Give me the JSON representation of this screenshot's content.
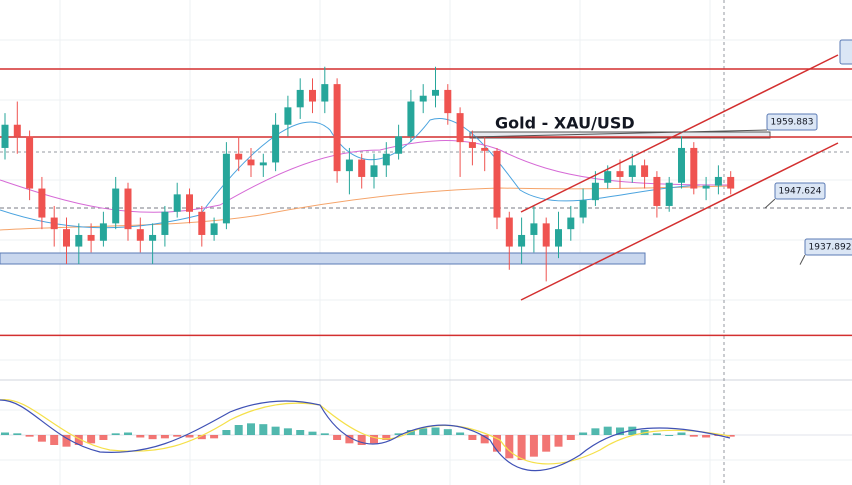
{
  "chart_data": {
    "type": "candlestick",
    "title": "Gold - XAU/USD",
    "up_color": "#26a69a",
    "down_color": "#ef5350",
    "ylim": [
      1918,
      1983.5
    ],
    "levels": [
      1971.6,
      1959.883,
      1925.7
    ],
    "price_labels": [
      1959.883,
      1947.624,
      1937.892
    ],
    "candles": [
      [
        1958,
        1964,
        1956,
        1962
      ],
      [
        1962,
        1966,
        1957,
        1960
      ],
      [
        1960,
        1961,
        1949,
        1951
      ],
      [
        1951,
        1953,
        1944,
        1946
      ],
      [
        1946,
        1948,
        1941,
        1944
      ],
      [
        1944,
        1946,
        1938,
        1941
      ],
      [
        1941,
        1945,
        1938,
        1943
      ],
      [
        1943,
        1945,
        1940,
        1942
      ],
      [
        1942,
        1947,
        1941,
        1945
      ],
      [
        1945,
        1953,
        1944,
        1951
      ],
      [
        1951,
        1952,
        1942,
        1944
      ],
      [
        1944,
        1946,
        1940,
        1942
      ],
      [
        1942,
        1945,
        1938,
        1943
      ],
      [
        1943,
        1948,
        1941,
        1947
      ],
      [
        1947,
        1952,
        1946,
        1950
      ],
      [
        1950,
        1951,
        1945,
        1947
      ],
      [
        1947,
        1948,
        1941,
        1943
      ],
      [
        1943,
        1946,
        1942,
        1945
      ],
      [
        1945,
        1959,
        1944,
        1957
      ],
      [
        1957,
        1960,
        1954,
        1956
      ],
      [
        1956,
        1958,
        1953,
        1955
      ],
      [
        1955,
        1957,
        1953,
        1955.5
      ],
      [
        1955.5,
        1964,
        1954,
        1962
      ],
      [
        1962,
        1967,
        1960,
        1965
      ],
      [
        1965,
        1970,
        1963,
        1968
      ],
      [
        1968,
        1970,
        1964,
        1966
      ],
      [
        1966,
        1972,
        1964,
        1969
      ],
      [
        1969,
        1970,
        1952,
        1954
      ],
      [
        1954,
        1958,
        1950,
        1956
      ],
      [
        1956,
        1957,
        1951,
        1953
      ],
      [
        1953,
        1957,
        1951,
        1955
      ],
      [
        1955,
        1959,
        1953,
        1957
      ],
      [
        1957,
        1962,
        1956,
        1960
      ],
      [
        1960,
        1968,
        1959,
        1966
      ],
      [
        1966,
        1969,
        1964,
        1967
      ],
      [
        1967,
        1972,
        1965,
        1968
      ],
      [
        1968,
        1969,
        1962,
        1964
      ],
      [
        1964,
        1965,
        1953,
        1959
      ],
      [
        1959,
        1961,
        1955,
        1958
      ],
      [
        1958,
        1960,
        1954,
        1957.5
      ],
      [
        1957.5,
        1958,
        1944,
        1946
      ],
      [
        1946,
        1947,
        1937,
        1941
      ],
      [
        1941,
        1946,
        1938,
        1943
      ],
      [
        1943,
        1948,
        1940,
        1945
      ],
      [
        1945,
        1946,
        1935,
        1941
      ],
      [
        1941,
        1947,
        1939,
        1944
      ],
      [
        1944,
        1948,
        1942,
        1946
      ],
      [
        1946,
        1951,
        1945,
        1949
      ],
      [
        1949,
        1954,
        1948,
        1952
      ],
      [
        1952,
        1955,
        1951,
        1954
      ],
      [
        1954,
        1956,
        1951,
        1953
      ],
      [
        1953,
        1957,
        1952,
        1955
      ],
      [
        1955,
        1956,
        1951,
        1953
      ],
      [
        1953,
        1954,
        1946,
        1948
      ],
      [
        1948,
        1953,
        1947,
        1952
      ],
      [
        1952,
        1960,
        1951,
        1958
      ],
      [
        1958,
        1959,
        1950,
        1951
      ],
      [
        1951,
        1953,
        1949,
        1951.5
      ],
      [
        1951.5,
        1955,
        1950,
        1953
      ],
      [
        1953,
        1954,
        1950,
        1951
      ]
    ],
    "macd_ylim": [
      -60,
      60
    ],
    "macd_histogram": [
      3,
      2,
      -2,
      -8,
      -12,
      -14,
      -12,
      -10,
      -6,
      2,
      3,
      -3,
      -5,
      -4,
      -2,
      -3,
      -5,
      -4,
      6,
      12,
      14,
      13,
      10,
      8,
      6,
      4,
      2,
      -6,
      -10,
      -12,
      -10,
      -6,
      2,
      6,
      8,
      9,
      7,
      3,
      -6,
      -10,
      -20,
      -28,
      -30,
      -26,
      -20,
      -14,
      -6,
      3,
      8,
      10,
      9,
      10,
      6,
      2,
      0,
      3,
      -2,
      -3,
      -1,
      -2
    ]
  }
}
